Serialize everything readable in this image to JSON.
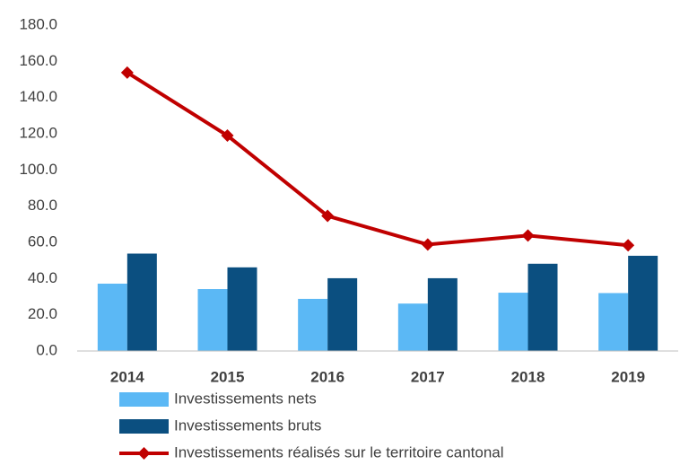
{
  "chart_data": {
    "type": "bar_line",
    "categories": [
      "2014",
      "2015",
      "2016",
      "2017",
      "2018",
      "2019"
    ],
    "series": [
      {
        "name": "Investissements nets",
        "type": "bar",
        "color": "#5bb8f5",
        "values": [
          37.2,
          34.2,
          28.8,
          26.2,
          32.2,
          32.0
        ]
      },
      {
        "name": "Investissements bruts",
        "type": "bar",
        "color": "#0b4f80",
        "values": [
          53.8,
          46.2,
          40.2,
          40.2,
          48.2,
          52.6
        ]
      },
      {
        "name": "Investissements réalisés sur le territoire cantonal",
        "type": "line",
        "color": "#c00000",
        "values": [
          153.8,
          119.0,
          74.6,
          58.8,
          63.8,
          58.4
        ]
      }
    ],
    "ylim": [
      0,
      180
    ],
    "yticks": [
      {
        "value": 0,
        "label": "0.0"
      },
      {
        "value": 20,
        "label": "20.0"
      },
      {
        "value": 40,
        "label": "40.0"
      },
      {
        "value": 60,
        "label": "60.0"
      },
      {
        "value": 80,
        "label": "80.0"
      },
      {
        "value": 100,
        "label": "100.0"
      },
      {
        "value": 120,
        "label": "120.0"
      },
      {
        "value": 140,
        "label": "140.0"
      },
      {
        "value": 160,
        "label": "160.0"
      },
      {
        "value": 180,
        "label": "180.0"
      }
    ],
    "grid": false,
    "legend": "bottom"
  }
}
